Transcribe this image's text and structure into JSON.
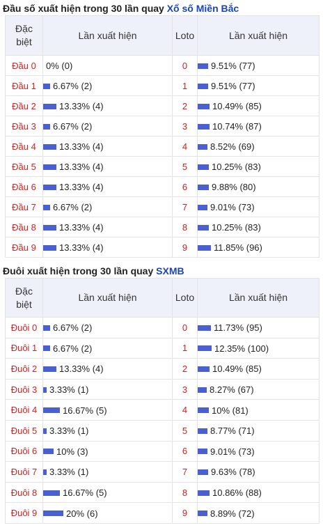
{
  "dau": {
    "title_prefix": "Đầu số xuất hiện trong 30 lần quay ",
    "title_link": "Xổ số Miền Bắc",
    "headers": {
      "special_line1": "Đặc",
      "special_line2": "biệt",
      "freq": "Lần xuất hiện",
      "loto": "Loto",
      "freq2": "Lần xuất hiện"
    },
    "rows": [
      {
        "label": "Đầu 0",
        "pct": "0% (0)",
        "pct_val": 0,
        "loto": "0",
        "loto_pct": "9.51% (77)",
        "loto_val": 9.51
      },
      {
        "label": "Đầu 1",
        "pct": "6.67% (2)",
        "pct_val": 6.67,
        "loto": "1",
        "loto_pct": "9.51% (77)",
        "loto_val": 9.51
      },
      {
        "label": "Đầu 2",
        "pct": "13.33% (4)",
        "pct_val": 13.33,
        "loto": "2",
        "loto_pct": "10.49% (85)",
        "loto_val": 10.49
      },
      {
        "label": "Đầu 3",
        "pct": "6.67% (2)",
        "pct_val": 6.67,
        "loto": "3",
        "loto_pct": "10.74% (87)",
        "loto_val": 10.74
      },
      {
        "label": "Đầu 4",
        "pct": "13.33% (4)",
        "pct_val": 13.33,
        "loto": "4",
        "loto_pct": "8.52% (69)",
        "loto_val": 8.52
      },
      {
        "label": "Đầu 5",
        "pct": "13.33% (4)",
        "pct_val": 13.33,
        "loto": "5",
        "loto_pct": "10.25% (83)",
        "loto_val": 10.25
      },
      {
        "label": "Đầu 6",
        "pct": "13.33% (4)",
        "pct_val": 13.33,
        "loto": "6",
        "loto_pct": "9.88% (80)",
        "loto_val": 9.88
      },
      {
        "label": "Đầu 7",
        "pct": "6.67% (2)",
        "pct_val": 6.67,
        "loto": "7",
        "loto_pct": "9.01% (73)",
        "loto_val": 9.01
      },
      {
        "label": "Đầu 8",
        "pct": "13.33% (4)",
        "pct_val": 13.33,
        "loto": "8",
        "loto_pct": "10.25% (83)",
        "loto_val": 10.25
      },
      {
        "label": "Đầu 9",
        "pct": "13.33% (4)",
        "pct_val": 13.33,
        "loto": "9",
        "loto_pct": "11.85% (96)",
        "loto_val": 11.85
      }
    ]
  },
  "duoi": {
    "title_prefix": "Đuôi xuất hiện trong 30 lần quay ",
    "title_link": "SXMB",
    "headers": {
      "special_line1": "Đặc",
      "special_line2": "biệt",
      "freq": "Lần xuất hiện",
      "loto": "Loto",
      "freq2": "Lần xuất hiện"
    },
    "rows": [
      {
        "label": "Đuôi 0",
        "pct": "6.67% (2)",
        "pct_val": 6.67,
        "loto": "0",
        "loto_pct": "11.73% (95)",
        "loto_val": 11.73
      },
      {
        "label": "Đuôi 1",
        "pct": "6.67% (2)",
        "pct_val": 6.67,
        "loto": "1",
        "loto_pct": "12.35% (100)",
        "loto_val": 12.35
      },
      {
        "label": "Đuôi 2",
        "pct": "13.33% (4)",
        "pct_val": 13.33,
        "loto": "2",
        "loto_pct": "10.49% (85)",
        "loto_val": 10.49
      },
      {
        "label": "Đuôi 3",
        "pct": "3.33% (1)",
        "pct_val": 3.33,
        "loto": "3",
        "loto_pct": "8.27% (67)",
        "loto_val": 8.27
      },
      {
        "label": "Đuôi 4",
        "pct": "16.67% (5)",
        "pct_val": 16.67,
        "loto": "4",
        "loto_pct": "10% (81)",
        "loto_val": 10
      },
      {
        "label": "Đuôi 5",
        "pct": "3.33% (1)",
        "pct_val": 3.33,
        "loto": "5",
        "loto_pct": "8.77% (71)",
        "loto_val": 8.77
      },
      {
        "label": "Đuôi 6",
        "pct": "10% (3)",
        "pct_val": 10,
        "loto": "6",
        "loto_pct": "9.01% (73)",
        "loto_val": 9.01
      },
      {
        "label": "Đuôi 7",
        "pct": "3.33% (1)",
        "pct_val": 3.33,
        "loto": "7",
        "loto_pct": "9.63% (78)",
        "loto_val": 9.63
      },
      {
        "label": "Đuôi 8",
        "pct": "16.67% (5)",
        "pct_val": 16.67,
        "loto": "8",
        "loto_pct": "10.86% (88)",
        "loto_val": 10.86
      },
      {
        "label": "Đuôi 9",
        "pct": "20% (6)",
        "pct_val": 20,
        "loto": "9",
        "loto_pct": "8.89% (72)",
        "loto_val": 8.89
      }
    ]
  },
  "colors": {
    "accent_link": "#1a44b8",
    "label_red": "#d6201f",
    "bar_blue": "#4a5fd0",
    "header_bg": "#eef1fa"
  }
}
